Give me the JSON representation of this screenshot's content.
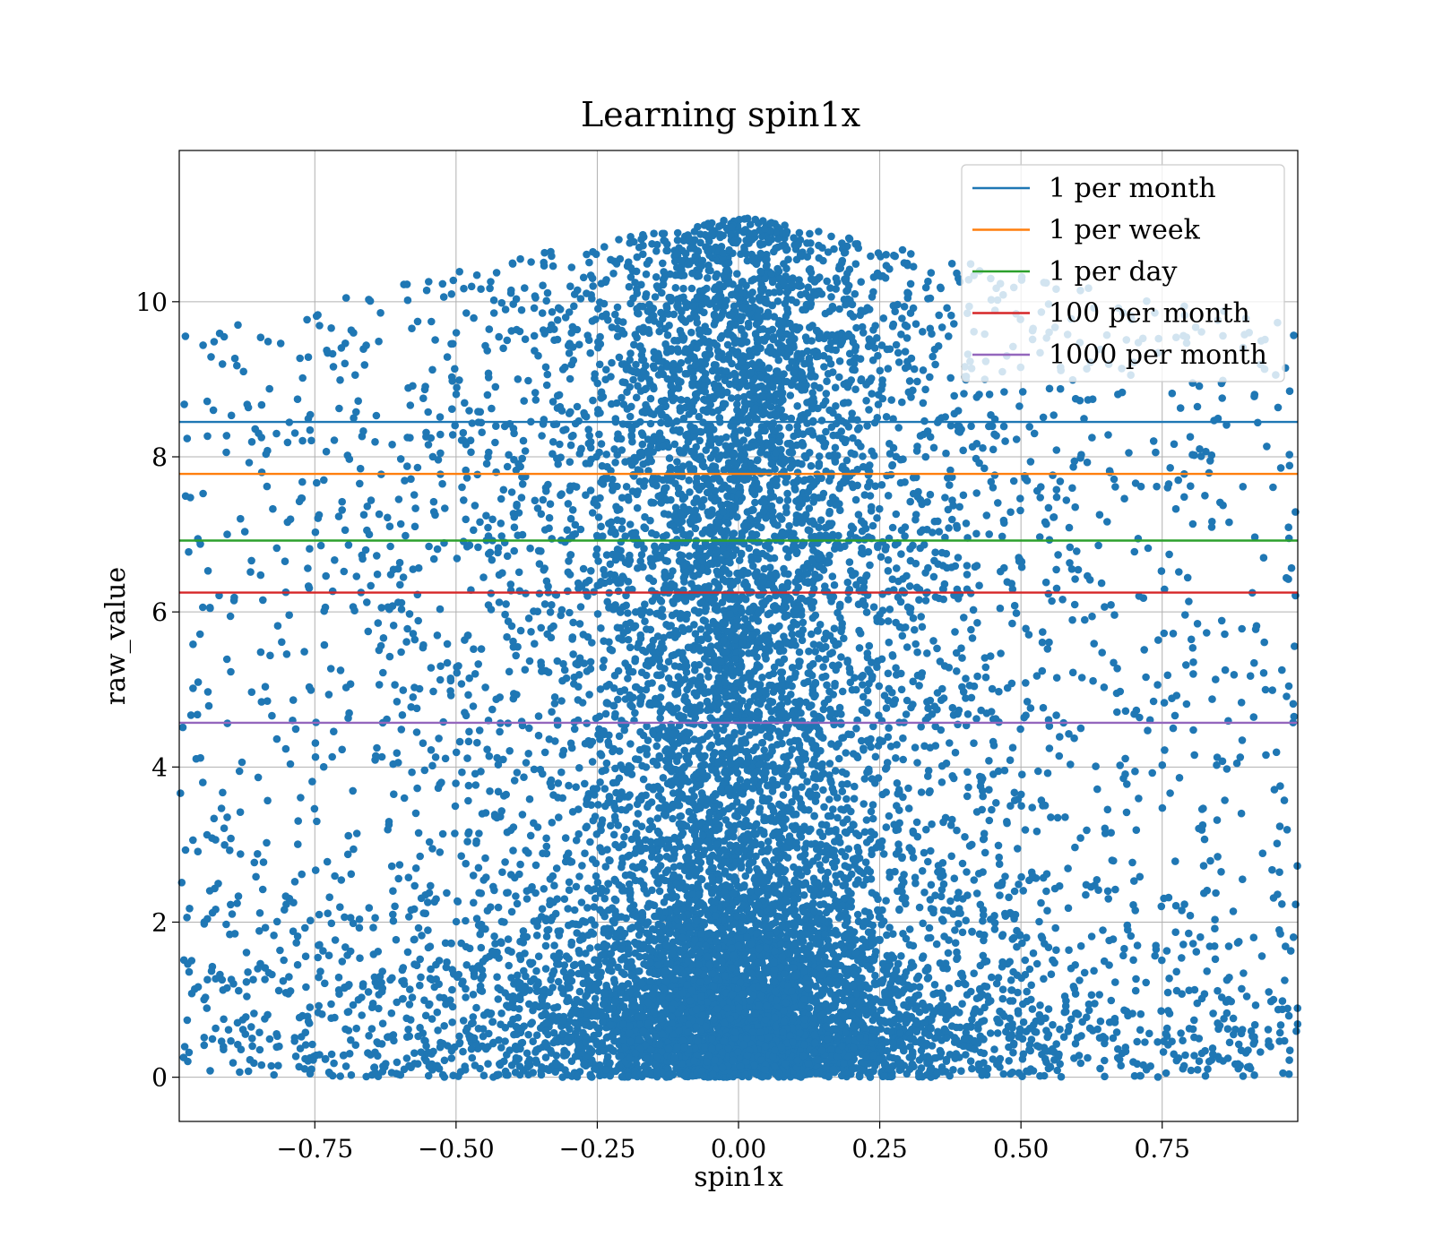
{
  "chart_data": {
    "type": "scatter",
    "title": "Learning spin1x",
    "xlabel": "spin1x",
    "ylabel": "raw_value",
    "xlim": [
      -0.99,
      0.99
    ],
    "ylim": [
      -0.57,
      11.95
    ],
    "xticks": [
      -0.75,
      -0.5,
      -0.25,
      0.0,
      0.25,
      0.5,
      0.75
    ],
    "xtick_labels": [
      "−0.75",
      "−0.50",
      "−0.25",
      "0.00",
      "0.25",
      "0.50",
      "0.75"
    ],
    "yticks": [
      0,
      2,
      4,
      6,
      8,
      10
    ],
    "ytick_labels": [
      "0",
      "2",
      "4",
      "6",
      "8",
      "10"
    ],
    "grid": true,
    "legend_position": "top-right",
    "scatter_color": "#1f77b4",
    "scatter_point_count_estimate": 12000,
    "scatter_distribution": {
      "x_center": 0.0,
      "x_range": [
        -0.99,
        0.99
      ],
      "y_range": [
        0.0,
        11.1
      ],
      "density": "highest near x=0 and y<2, thinning toward |x|=1 and toward high y"
    },
    "hlines": [
      {
        "name": "1 per month",
        "y": 8.45,
        "color": "#1f77b4"
      },
      {
        "name": "1 per week",
        "y": 7.78,
        "color": "#ff7f0e"
      },
      {
        "name": "1 per day",
        "y": 6.92,
        "color": "#2ca02c"
      },
      {
        "name": "100 per month",
        "y": 6.25,
        "color": "#d62728"
      },
      {
        "name": "1000 per month",
        "y": 4.57,
        "color": "#9467bd"
      }
    ]
  }
}
